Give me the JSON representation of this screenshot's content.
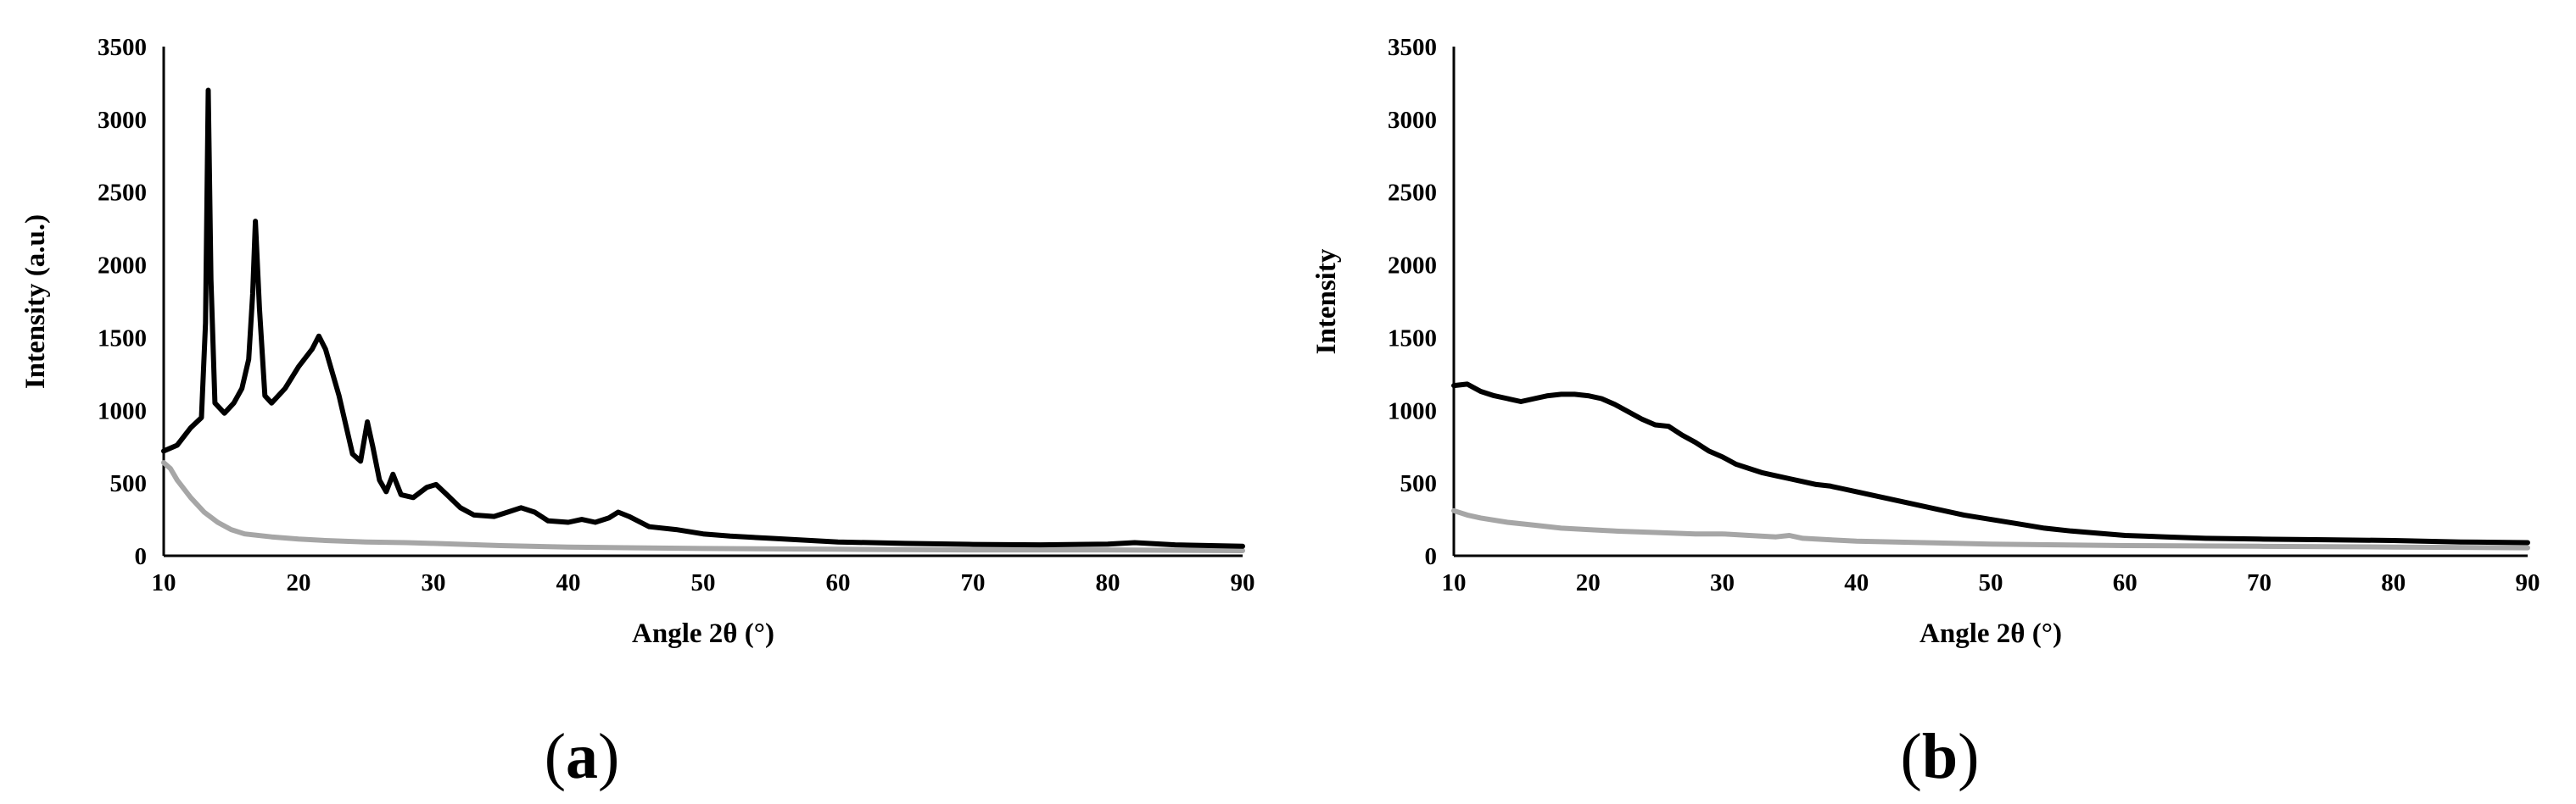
{
  "chart_data": [
    {
      "type": "line",
      "panel_label": "a",
      "xlabel": "Angle 2θ (°)",
      "ylabel": "Intensity (a.u.)",
      "xlim": [
        10,
        90
      ],
      "ylim": [
        0,
        3500
      ],
      "xticks": [
        10,
        20,
        30,
        40,
        50,
        60,
        70,
        80,
        90
      ],
      "yticks": [
        0,
        500,
        1000,
        1500,
        2000,
        2500,
        3000,
        3500
      ],
      "grid": false,
      "legend": "none",
      "series": [
        {
          "color": "#000000",
          "points": [
            [
              10,
              720
            ],
            [
              11,
              760
            ],
            [
              12,
              880
            ],
            [
              12.8,
              950
            ],
            [
              13.1,
              1600
            ],
            [
              13.3,
              3200
            ],
            [
              13.5,
              1900
            ],
            [
              13.8,
              1050
            ],
            [
              14.5,
              980
            ],
            [
              15.2,
              1050
            ],
            [
              15.8,
              1150
            ],
            [
              16.3,
              1350
            ],
            [
              16.6,
              1800
            ],
            [
              16.8,
              2300
            ],
            [
              17.1,
              1700
            ],
            [
              17.5,
              1100
            ],
            [
              18,
              1050
            ],
            [
              19,
              1150
            ],
            [
              20,
              1300
            ],
            [
              21,
              1420
            ],
            [
              21.5,
              1510
            ],
            [
              22,
              1420
            ],
            [
              23,
              1100
            ],
            [
              24,
              700
            ],
            [
              24.6,
              650
            ],
            [
              25.1,
              920
            ],
            [
              25.5,
              750
            ],
            [
              26,
              520
            ],
            [
              26.5,
              440
            ],
            [
              27,
              560
            ],
            [
              27.6,
              420
            ],
            [
              28.5,
              400
            ],
            [
              29.5,
              470
            ],
            [
              30.2,
              490
            ],
            [
              31,
              420
            ],
            [
              32,
              330
            ],
            [
              33,
              280
            ],
            [
              34.5,
              270
            ],
            [
              35.5,
              300
            ],
            [
              36.5,
              330
            ],
            [
              37.5,
              300
            ],
            [
              38.5,
              240
            ],
            [
              40,
              230
            ],
            [
              41,
              250
            ],
            [
              42,
              230
            ],
            [
              43,
              260
            ],
            [
              43.7,
              300
            ],
            [
              44.5,
              270
            ],
            [
              46,
              200
            ],
            [
              48,
              180
            ],
            [
              50,
              150
            ],
            [
              52,
              135
            ],
            [
              55,
              120
            ],
            [
              58,
              105
            ],
            [
              60,
              95
            ],
            [
              65,
              85
            ],
            [
              70,
              78
            ],
            [
              75,
              75
            ],
            [
              80,
              80
            ],
            [
              82,
              90
            ],
            [
              85,
              75
            ],
            [
              90,
              65
            ]
          ]
        },
        {
          "color": "#a6a6a6",
          "points": [
            [
              10,
              640
            ],
            [
              10.5,
              600
            ],
            [
              11,
              520
            ],
            [
              12,
              400
            ],
            [
              13,
              300
            ],
            [
              14,
              230
            ],
            [
              15,
              180
            ],
            [
              16,
              150
            ],
            [
              18,
              130
            ],
            [
              20,
              115
            ],
            [
              22,
              105
            ],
            [
              25,
              95
            ],
            [
              28,
              90
            ],
            [
              30,
              85
            ],
            [
              35,
              70
            ],
            [
              40,
              60
            ],
            [
              45,
              55
            ],
            [
              50,
              50
            ],
            [
              60,
              45
            ],
            [
              70,
              40
            ],
            [
              80,
              40
            ],
            [
              90,
              35
            ]
          ]
        }
      ]
    },
    {
      "type": "line",
      "panel_label": "b",
      "xlabel": "Angle 2θ (°)",
      "ylabel": "Intensity",
      "xlim": [
        10,
        90
      ],
      "ylim": [
        0,
        3500
      ],
      "xticks": [
        10,
        20,
        30,
        40,
        50,
        60,
        70,
        80,
        90
      ],
      "yticks": [
        0,
        500,
        1000,
        1500,
        2000,
        2500,
        3000,
        3500
      ],
      "grid": false,
      "legend": "none",
      "series": [
        {
          "color": "#000000",
          "points": [
            [
              10,
              1170
            ],
            [
              11,
              1180
            ],
            [
              12,
              1130
            ],
            [
              13,
              1100
            ],
            [
              14,
              1080
            ],
            [
              15,
              1060
            ],
            [
              16,
              1080
            ],
            [
              17,
              1100
            ],
            [
              18,
              1110
            ],
            [
              19,
              1110
            ],
            [
              20,
              1100
            ],
            [
              21,
              1080
            ],
            [
              22,
              1040
            ],
            [
              23,
              990
            ],
            [
              24,
              940
            ],
            [
              25,
              900
            ],
            [
              26,
              890
            ],
            [
              27,
              830
            ],
            [
              28,
              780
            ],
            [
              29,
              720
            ],
            [
              30,
              680
            ],
            [
              31,
              630
            ],
            [
              32,
              600
            ],
            [
              33,
              570
            ],
            [
              34,
              550
            ],
            [
              35,
              530
            ],
            [
              36,
              510
            ],
            [
              37,
              490
            ],
            [
              38,
              480
            ],
            [
              39,
              460
            ],
            [
              40,
              440
            ],
            [
              42,
              400
            ],
            [
              44,
              360
            ],
            [
              46,
              320
            ],
            [
              48,
              280
            ],
            [
              50,
              250
            ],
            [
              52,
              220
            ],
            [
              54,
              190
            ],
            [
              56,
              170
            ],
            [
              58,
              155
            ],
            [
              60,
              140
            ],
            [
              63,
              130
            ],
            [
              66,
              120
            ],
            [
              70,
              115
            ],
            [
              75,
              110
            ],
            [
              80,
              105
            ],
            [
              85,
              95
            ],
            [
              90,
              90
            ]
          ]
        },
        {
          "color": "#a6a6a6",
          "points": [
            [
              10,
              310
            ],
            [
              11,
              280
            ],
            [
              12,
              260
            ],
            [
              14,
              230
            ],
            [
              16,
              210
            ],
            [
              18,
              190
            ],
            [
              20,
              180
            ],
            [
              22,
              170
            ],
            [
              25,
              160
            ],
            [
              28,
              150
            ],
            [
              30,
              150
            ],
            [
              32,
              140
            ],
            [
              34,
              130
            ],
            [
              35,
              140
            ],
            [
              36,
              120
            ],
            [
              38,
              110
            ],
            [
              40,
              100
            ],
            [
              45,
              90
            ],
            [
              50,
              80
            ],
            [
              55,
              75
            ],
            [
              60,
              70
            ],
            [
              70,
              65
            ],
            [
              80,
              60
            ],
            [
              90,
              55
            ]
          ]
        }
      ]
    }
  ]
}
